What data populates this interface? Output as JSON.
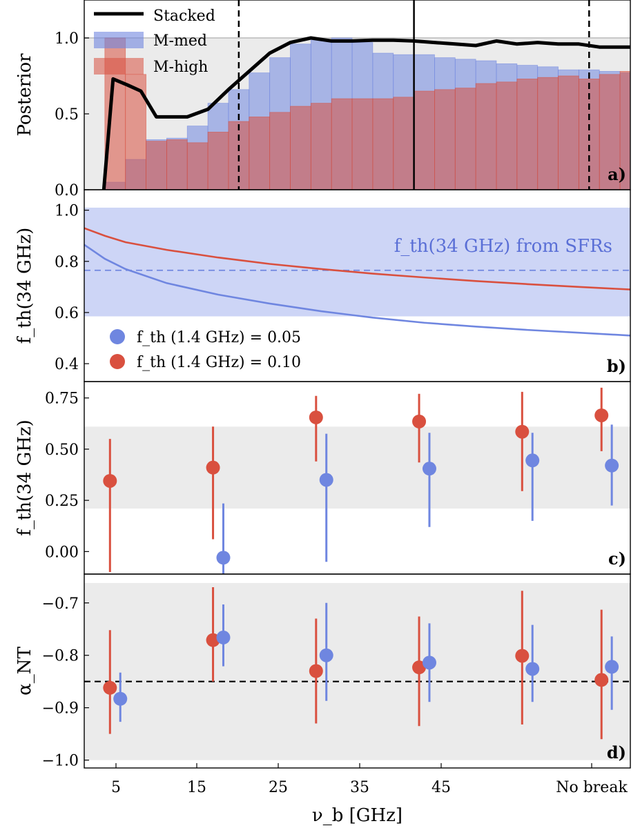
{
  "x_axis": {
    "label": "ν_b [GHz]",
    "categories": [
      "5",
      "15",
      "25",
      "35",
      "45",
      "No break"
    ]
  },
  "panels": {
    "a": {
      "letter": "a)",
      "ylabel": "Posterior",
      "yticks": [
        "0.0",
        "0.5",
        "1.0"
      ]
    },
    "b": {
      "letter": "b)",
      "ylabel": "f_th(34 GHz)",
      "yticks": [
        "0.4",
        "0.6",
        "0.8",
        "1.0"
      ],
      "band_label": "f_th(34 GHz) from SFRs"
    },
    "c": {
      "letter": "c)",
      "ylabel": "f_th(34 GHz)",
      "yticks": [
        "0.00",
        "0.25",
        "0.50",
        "0.75"
      ]
    },
    "d": {
      "letter": "d)",
      "ylabel": "α_NT",
      "yticks": [
        "−1.0",
        "−0.9",
        "−0.8",
        "−0.7"
      ]
    }
  },
  "colors": {
    "blue": "#6f86e0",
    "red": "#d9503f",
    "grey_band": "#ebebeb",
    "blue_band": "#cdd5f6",
    "black": "#000000"
  },
  "chart_data": [
    {
      "panel": "a",
      "type": "bar",
      "xlim": [
        2,
        55
      ],
      "ylim": [
        0,
        1.25
      ],
      "bin_edges": [
        4,
        6,
        8,
        10,
        12,
        14,
        16,
        18,
        20,
        22,
        24,
        26,
        28,
        30,
        32,
        34,
        36,
        38,
        40,
        42,
        44,
        46,
        48,
        50,
        52,
        54,
        56
      ],
      "series": [
        {
          "name": "M-med",
          "color": "#6f86e0",
          "values": [
            0.05,
            0.2,
            0.33,
            0.34,
            0.42,
            0.57,
            0.66,
            0.77,
            0.87,
            0.96,
            0.99,
            1.0,
            0.97,
            0.9,
            0.89,
            0.89,
            0.87,
            0.86,
            0.85,
            0.83,
            0.82,
            0.81,
            0.79,
            0.79,
            0.78,
            0.77
          ]
        },
        {
          "name": "M-high",
          "color": "#d9503f",
          "values": [
            1.0,
            0.76,
            0.32,
            0.33,
            0.31,
            0.38,
            0.45,
            0.48,
            0.51,
            0.55,
            0.57,
            0.6,
            0.6,
            0.6,
            0.61,
            0.65,
            0.66,
            0.67,
            0.7,
            0.71,
            0.73,
            0.74,
            0.75,
            0.73,
            0.76,
            0.78
          ]
        }
      ],
      "stacked_line": {
        "name": "Stacked",
        "x": [
          3.9,
          4.8,
          6.2,
          7.5,
          9,
          10.5,
          12,
          14,
          16,
          18,
          20,
          22,
          24,
          26,
          28,
          30,
          32,
          34,
          36,
          38,
          40,
          42,
          44,
          46,
          48,
          50,
          52,
          54,
          55
        ],
        "y": [
          0.0,
          0.73,
          0.69,
          0.65,
          0.48,
          0.48,
          0.48,
          0.53,
          0.66,
          0.78,
          0.9,
          0.97,
          1.0,
          0.98,
          0.98,
          0.985,
          0.985,
          0.98,
          0.97,
          0.96,
          0.95,
          0.98,
          0.96,
          0.97,
          0.96,
          0.96,
          0.94,
          0.94,
          0.94
        ]
      },
      "hline": 1.0,
      "vlines": [
        {
          "x": 34,
          "style": "solid"
        },
        {
          "x": 17,
          "style": "dashed"
        },
        {
          "x": 51,
          "style": "dashed"
        }
      ]
    },
    {
      "panel": "b",
      "type": "line",
      "xlim": [
        2,
        55
      ],
      "ylim": [
        0.33,
        1.08
      ],
      "band": [
        0.585,
        1.01
      ],
      "hline_dashed": 0.765,
      "series": [
        {
          "name": "f_th (1.4 GHz) = 0.05",
          "color": "#6f86e0",
          "x": [
            2,
            4,
            6,
            10,
            15,
            20,
            25,
            30,
            35,
            40,
            45,
            50,
            55
          ],
          "y": [
            0.865,
            0.81,
            0.77,
            0.715,
            0.67,
            0.635,
            0.605,
            0.58,
            0.56,
            0.545,
            0.532,
            0.521,
            0.51
          ]
        },
        {
          "name": "f_th (1.4 GHz) = 0.10",
          "color": "#d9503f",
          "x": [
            2,
            4,
            6,
            10,
            15,
            20,
            25,
            30,
            35,
            40,
            45,
            50,
            55
          ],
          "y": [
            0.93,
            0.9,
            0.875,
            0.845,
            0.815,
            0.79,
            0.77,
            0.752,
            0.737,
            0.723,
            0.711,
            0.7,
            0.69
          ]
        }
      ]
    },
    {
      "panel": "c",
      "type": "scatter",
      "xlim": [
        2,
        55
      ],
      "ylim": [
        -0.11,
        0.83
      ],
      "band": [
        0.21,
        0.61
      ],
      "series": [
        {
          "name": "f_th (1.4 GHz) = 0.10",
          "color": "#d9503f",
          "x": [
            4.5,
            14.5,
            24.5,
            34.5,
            44.5,
            52.2
          ],
          "y": [
            0.345,
            0.41,
            0.655,
            0.635,
            0.585,
            0.665
          ],
          "err_low": [
            0.445,
            0.35,
            0.215,
            0.2,
            0.29,
            0.175
          ],
          "err_high": [
            0.205,
            0.2,
            0.105,
            0.135,
            0.195,
            0.135
          ]
        },
        {
          "name": "f_th (1.4 GHz) = 0.05",
          "color": "#6f86e0",
          "x": [
            5.5,
            15.5,
            25.5,
            35.5,
            45.5,
            53.2
          ],
          "y": [
            null,
            -0.03,
            0.35,
            0.405,
            0.445,
            0.42
          ],
          "err_low": [
            null,
            0.1,
            0.4,
            0.285,
            0.295,
            0.195
          ],
          "err_high": [
            null,
            0.265,
            0.225,
            0.175,
            0.135,
            0.2
          ]
        }
      ]
    },
    {
      "panel": "d",
      "type": "scatter",
      "xlim": [
        2,
        55
      ],
      "ylim": [
        -1.015,
        -0.645
      ],
      "band": [
        -1.0,
        -0.662
      ],
      "hline_dashed": -0.85,
      "series": [
        {
          "name": "f_th (1.4 GHz) = 0.10",
          "color": "#d9503f",
          "x": [
            4.5,
            14.5,
            24.5,
            34.5,
            44.5,
            52.2
          ],
          "y": [
            -0.862,
            -0.771,
            -0.83,
            -0.823,
            -0.801,
            -0.847
          ],
          "err_low": [
            0.088,
            0.079,
            0.1,
            0.112,
            0.131,
            0.113
          ],
          "err_high": [
            0.11,
            0.101,
            0.1,
            0.097,
            0.124,
            0.134
          ]
        },
        {
          "name": "f_th (1.4 GHz) = 0.05",
          "color": "#6f86e0",
          "x": [
            5.5,
            15.5,
            25.5,
            35.5,
            45.5,
            53.2
          ],
          "y": [
            -0.883,
            -0.766,
            -0.8,
            -0.814,
            -0.826,
            -0.822
          ],
          "err_low": [
            0.044,
            0.055,
            0.087,
            0.075,
            0.063,
            0.082
          ],
          "err_high": [
            0.05,
            0.063,
            0.1,
            0.075,
            0.084,
            0.058
          ]
        }
      ]
    }
  ],
  "legend_a": [
    {
      "label": "Stacked",
      "kind": "line",
      "color": "#000000"
    },
    {
      "label": "M-med",
      "kind": "patch",
      "color": "#6f86e0"
    },
    {
      "label": "M-high",
      "kind": "patch",
      "color": "#d9503f"
    }
  ],
  "legend_b": [
    {
      "label": "f_th (1.4 GHz) = 0.05",
      "color": "#6f86e0"
    },
    {
      "label": "f_th (1.4 GHz) = 0.10",
      "color": "#d9503f"
    }
  ]
}
